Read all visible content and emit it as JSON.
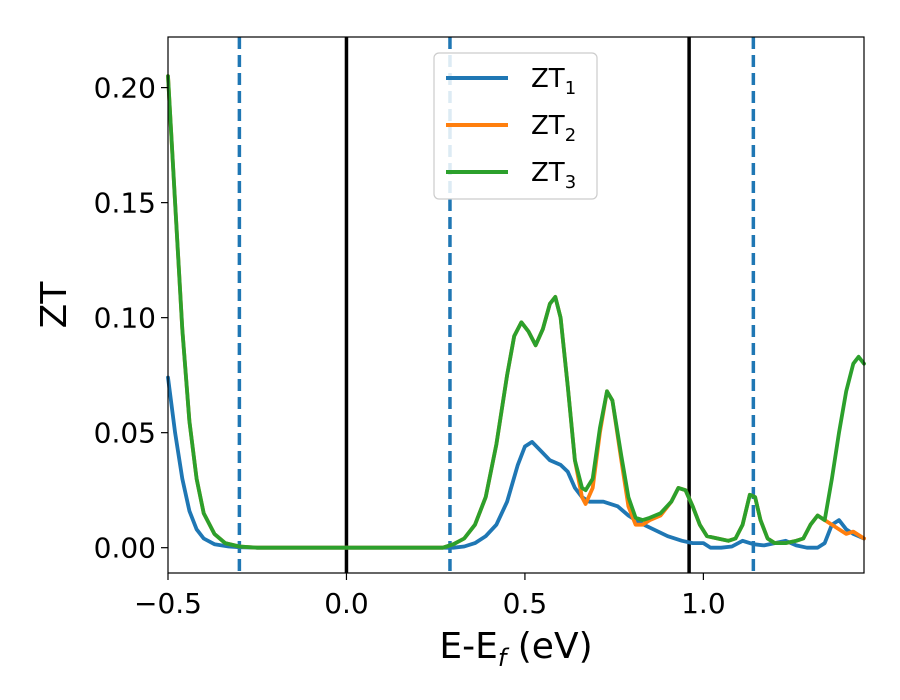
{
  "chart_data": {
    "type": "line",
    "title": "",
    "xlabel": "E-E",
    "xlabel_sub": "f",
    "xlabel_unit": " (eV)",
    "ylabel": "ZT",
    "xlim": [
      -0.5,
      1.45
    ],
    "ylim": [
      -0.011,
      0.222
    ],
    "grid": false,
    "legend_position": "top-center",
    "x_ticks": [
      -0.5,
      0.0,
      0.5,
      1.0
    ],
    "x_tick_labels": [
      "−0.5",
      "0.0",
      "0.5",
      "1.0"
    ],
    "y_ticks": [
      0.0,
      0.05,
      0.1,
      0.15,
      0.2
    ],
    "y_tick_labels": [
      "0.00",
      "0.05",
      "0.10",
      "0.15",
      "0.20"
    ],
    "vlines_solid": [
      0.0,
      0.96
    ],
    "vlines_dashed": [
      -0.3,
      0.29,
      1.14
    ],
    "series": [
      {
        "name": "ZT",
        "sub": "1",
        "color": "#1f77b4",
        "points": [
          [
            -0.5,
            0.074
          ],
          [
            -0.48,
            0.05
          ],
          [
            -0.46,
            0.03
          ],
          [
            -0.44,
            0.016
          ],
          [
            -0.42,
            0.008
          ],
          [
            -0.4,
            0.004
          ],
          [
            -0.37,
            0.0015
          ],
          [
            -0.33,
            0.0005
          ],
          [
            -0.3,
            0.0002
          ],
          [
            -0.25,
            0.0
          ],
          [
            0.0,
            0.0
          ],
          [
            0.3,
            0.0
          ],
          [
            0.33,
            0.0005
          ],
          [
            0.36,
            0.002
          ],
          [
            0.39,
            0.005
          ],
          [
            0.42,
            0.01
          ],
          [
            0.45,
            0.02
          ],
          [
            0.48,
            0.036
          ],
          [
            0.5,
            0.044
          ],
          [
            0.52,
            0.046
          ],
          [
            0.545,
            0.042
          ],
          [
            0.57,
            0.038
          ],
          [
            0.6,
            0.036
          ],
          [
            0.62,
            0.033
          ],
          [
            0.64,
            0.026
          ],
          [
            0.66,
            0.022
          ],
          [
            0.68,
            0.02
          ],
          [
            0.72,
            0.02
          ],
          [
            0.76,
            0.018
          ],
          [
            0.79,
            0.014
          ],
          [
            0.82,
            0.011
          ],
          [
            0.86,
            0.008
          ],
          [
            0.9,
            0.005
          ],
          [
            0.94,
            0.003
          ],
          [
            0.97,
            0.002
          ],
          [
            1.0,
            0.002
          ],
          [
            1.02,
            0.0
          ],
          [
            1.05,
            0.0
          ],
          [
            1.08,
            0.0005
          ],
          [
            1.11,
            0.003
          ],
          [
            1.14,
            0.0015
          ],
          [
            1.17,
            0.001
          ],
          [
            1.2,
            0.002
          ],
          [
            1.23,
            0.003
          ],
          [
            1.26,
            0.001
          ],
          [
            1.29,
            0.0
          ],
          [
            1.32,
            0.0
          ],
          [
            1.34,
            0.002
          ],
          [
            1.36,
            0.01
          ],
          [
            1.38,
            0.012
          ],
          [
            1.4,
            0.008
          ],
          [
            1.42,
            0.006
          ],
          [
            1.45,
            0.004
          ]
        ]
      },
      {
        "name": "ZT",
        "sub": "2",
        "color": "#ff7f0e",
        "points": [
          [
            -0.5,
            0.205
          ],
          [
            -0.48,
            0.15
          ],
          [
            -0.46,
            0.095
          ],
          [
            -0.44,
            0.055
          ],
          [
            -0.42,
            0.03
          ],
          [
            -0.4,
            0.015
          ],
          [
            -0.37,
            0.006
          ],
          [
            -0.34,
            0.002
          ],
          [
            -0.3,
            0.0005
          ],
          [
            -0.25,
            0.0
          ],
          [
            0.0,
            0.0
          ],
          [
            0.27,
            0.0
          ],
          [
            0.3,
            0.0015
          ],
          [
            0.33,
            0.004
          ],
          [
            0.36,
            0.01
          ],
          [
            0.39,
            0.022
          ],
          [
            0.42,
            0.045
          ],
          [
            0.45,
            0.075
          ],
          [
            0.47,
            0.092
          ],
          [
            0.49,
            0.098
          ],
          [
            0.51,
            0.094
          ],
          [
            0.53,
            0.088
          ],
          [
            0.55,
            0.095
          ],
          [
            0.57,
            0.106
          ],
          [
            0.585,
            0.109
          ],
          [
            0.6,
            0.1
          ],
          [
            0.62,
            0.07
          ],
          [
            0.64,
            0.038
          ],
          [
            0.66,
            0.022
          ],
          [
            0.67,
            0.019
          ],
          [
            0.69,
            0.026
          ],
          [
            0.71,
            0.05
          ],
          [
            0.73,
            0.068
          ],
          [
            0.745,
            0.064
          ],
          [
            0.77,
            0.038
          ],
          [
            0.79,
            0.018
          ],
          [
            0.81,
            0.01
          ],
          [
            0.83,
            0.01
          ],
          [
            0.85,
            0.012
          ],
          [
            0.88,
            0.014
          ],
          [
            0.91,
            0.02
          ],
          [
            0.93,
            0.026
          ],
          [
            0.95,
            0.025
          ],
          [
            0.97,
            0.018
          ],
          [
            0.99,
            0.01
          ],
          [
            1.01,
            0.005
          ],
          [
            1.04,
            0.004
          ],
          [
            1.07,
            0.003
          ],
          [
            1.09,
            0.004
          ],
          [
            1.11,
            0.01
          ],
          [
            1.13,
            0.023
          ],
          [
            1.145,
            0.022
          ],
          [
            1.16,
            0.012
          ],
          [
            1.18,
            0.004
          ],
          [
            1.2,
            0.002
          ],
          [
            1.23,
            0.002
          ],
          [
            1.26,
            0.003
          ],
          [
            1.28,
            0.004
          ],
          [
            1.3,
            0.01
          ],
          [
            1.32,
            0.014
          ],
          [
            1.34,
            0.012
          ],
          [
            1.36,
            0.01
          ],
          [
            1.38,
            0.008
          ],
          [
            1.4,
            0.006
          ],
          [
            1.42,
            0.007
          ],
          [
            1.45,
            0.004
          ]
        ]
      },
      {
        "name": "ZT",
        "sub": "3",
        "color": "#2ca02c",
        "points": [
          [
            -0.5,
            0.205
          ],
          [
            -0.48,
            0.15
          ],
          [
            -0.46,
            0.095
          ],
          [
            -0.44,
            0.055
          ],
          [
            -0.42,
            0.03
          ],
          [
            -0.4,
            0.015
          ],
          [
            -0.37,
            0.006
          ],
          [
            -0.34,
            0.002
          ],
          [
            -0.3,
            0.0005
          ],
          [
            -0.25,
            0.0
          ],
          [
            0.0,
            0.0
          ],
          [
            0.27,
            0.0
          ],
          [
            0.3,
            0.0015
          ],
          [
            0.33,
            0.004
          ],
          [
            0.36,
            0.01
          ],
          [
            0.39,
            0.022
          ],
          [
            0.42,
            0.045
          ],
          [
            0.45,
            0.075
          ],
          [
            0.47,
            0.092
          ],
          [
            0.49,
            0.098
          ],
          [
            0.51,
            0.094
          ],
          [
            0.53,
            0.088
          ],
          [
            0.55,
            0.095
          ],
          [
            0.57,
            0.106
          ],
          [
            0.585,
            0.109
          ],
          [
            0.6,
            0.1
          ],
          [
            0.62,
            0.07
          ],
          [
            0.64,
            0.038
          ],
          [
            0.66,
            0.026
          ],
          [
            0.67,
            0.025
          ],
          [
            0.69,
            0.03
          ],
          [
            0.71,
            0.052
          ],
          [
            0.73,
            0.068
          ],
          [
            0.745,
            0.064
          ],
          [
            0.77,
            0.04
          ],
          [
            0.79,
            0.022
          ],
          [
            0.81,
            0.013
          ],
          [
            0.83,
            0.012
          ],
          [
            0.85,
            0.013
          ],
          [
            0.88,
            0.015
          ],
          [
            0.91,
            0.02
          ],
          [
            0.93,
            0.026
          ],
          [
            0.95,
            0.025
          ],
          [
            0.97,
            0.018
          ],
          [
            0.99,
            0.01
          ],
          [
            1.01,
            0.005
          ],
          [
            1.04,
            0.004
          ],
          [
            1.07,
            0.003
          ],
          [
            1.09,
            0.004
          ],
          [
            1.11,
            0.01
          ],
          [
            1.13,
            0.023
          ],
          [
            1.145,
            0.022
          ],
          [
            1.16,
            0.012
          ],
          [
            1.18,
            0.004
          ],
          [
            1.2,
            0.002
          ],
          [
            1.23,
            0.002
          ],
          [
            1.26,
            0.003
          ],
          [
            1.28,
            0.004
          ],
          [
            1.3,
            0.01
          ],
          [
            1.32,
            0.014
          ],
          [
            1.34,
            0.012
          ],
          [
            1.36,
            0.03
          ],
          [
            1.38,
            0.05
          ],
          [
            1.4,
            0.068
          ],
          [
            1.42,
            0.08
          ],
          [
            1.435,
            0.083
          ],
          [
            1.45,
            0.08
          ]
        ]
      }
    ]
  }
}
